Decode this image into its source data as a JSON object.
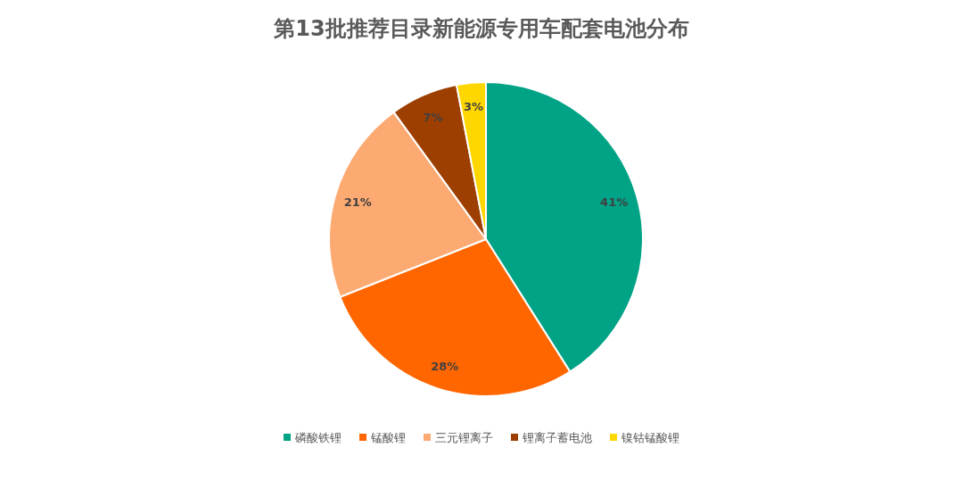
{
  "chart_data": {
    "type": "pie",
    "title": "第13批推荐目录新能源专用车配套电池分布",
    "categories": [
      "磷酸铁锂",
      "锰酸锂",
      "三元锂离子",
      "锂离子蓄电池",
      "镍钴锰酸锂"
    ],
    "values": [
      41,
      28,
      21,
      7,
      3
    ],
    "colors": [
      "#00a386",
      "#ff6600",
      "#fdaa72",
      "#9c3f00",
      "#ffd700"
    ],
    "value_labels": [
      "41%",
      "28%",
      "21%",
      "7%",
      "3%"
    ],
    "legend": "bottom"
  }
}
